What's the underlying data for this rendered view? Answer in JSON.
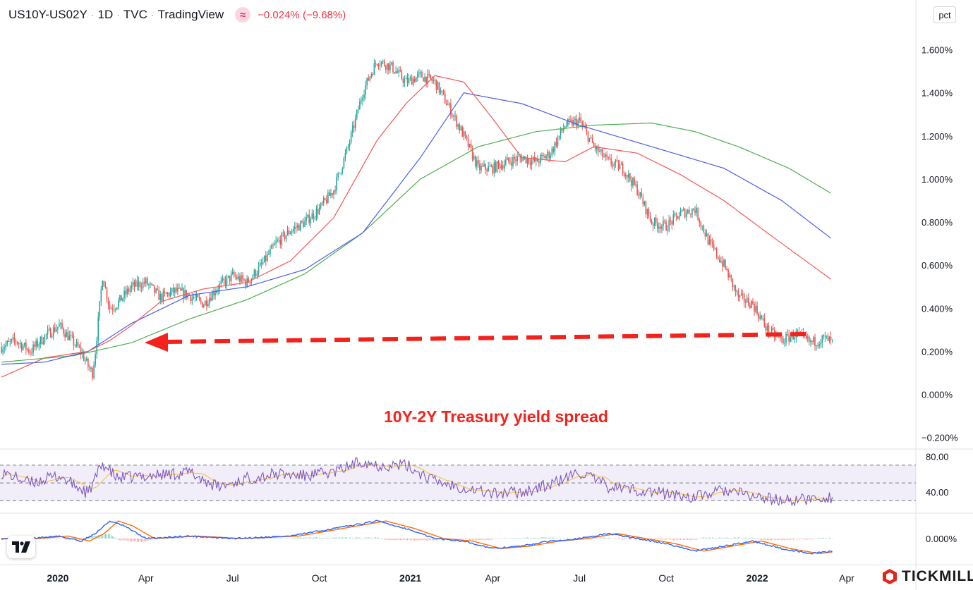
{
  "header": {
    "symbol": "US10Y-US02Y",
    "interval": "1D",
    "source": "TVC",
    "platform": "TradingView",
    "badge": "≈",
    "change": "−0.024% (−9.68%)"
  },
  "scale_button": "pct",
  "brand": "TICKMILL",
  "annotation": "10Y-2Y Treasury yield spread",
  "colors": {
    "up": "#26a69a",
    "down": "#ef5350",
    "ma_red": "#f25656",
    "ma_blue": "#4c5ee8",
    "ma_green": "#4caf50",
    "rsi": "#7e57c2",
    "rsi_ma": "#f5c242",
    "macd": "#2962ff",
    "signal": "#ff6d00",
    "arrow": "#f4221c"
  },
  "chart_data": {
    "type": "line",
    "x_ticks": [
      "2020",
      "Apr",
      "Jul",
      "Oct",
      "2021",
      "Apr",
      "Jul",
      "Oct",
      "2022",
      "Apr"
    ],
    "x_ticks_bold": [
      "2020",
      "2021",
      "2022"
    ],
    "price_axis": {
      "ticks": [
        "1.600%",
        "1.400%",
        "1.200%",
        "1.000%",
        "0.800%",
        "0.600%",
        "0.400%",
        "0.200%",
        "0.000%",
        "−0.200%"
      ],
      "ylim": [
        -0.25,
        1.7
      ]
    },
    "price": {
      "x": [
        0,
        10,
        20,
        30,
        40,
        50,
        55,
        60,
        63,
        65,
        70,
        75,
        80,
        90,
        100,
        110,
        120,
        130,
        140,
        150,
        160,
        170,
        180,
        190,
        200,
        210,
        220,
        230,
        240,
        250,
        255,
        260,
        270,
        280,
        290,
        300,
        310,
        320,
        330,
        340,
        350,
        360,
        370,
        380,
        390,
        400,
        410,
        420,
        430,
        440,
        450,
        460,
        470,
        480,
        490,
        500,
        510,
        520,
        530,
        540,
        550,
        560,
        570,
        575
      ],
      "y": [
        0.22,
        0.25,
        0.2,
        0.27,
        0.32,
        0.24,
        0.2,
        0.13,
        0.1,
        0.2,
        0.55,
        0.4,
        0.42,
        0.5,
        0.52,
        0.45,
        0.48,
        0.46,
        0.42,
        0.5,
        0.55,
        0.52,
        0.6,
        0.7,
        0.76,
        0.8,
        0.86,
        0.95,
        1.15,
        1.4,
        1.48,
        1.55,
        1.52,
        1.45,
        1.48,
        1.45,
        1.33,
        1.2,
        1.05,
        1.05,
        1.08,
        1.1,
        1.08,
        1.12,
        1.25,
        1.27,
        1.15,
        1.08,
        1.05,
        0.95,
        0.8,
        0.78,
        0.84,
        0.86,
        0.7,
        0.6,
        0.45,
        0.42,
        0.3,
        0.25,
        0.28,
        0.24,
        0.26,
        0.24
      ]
    },
    "ma_red": {
      "x": [
        0,
        30,
        60,
        75,
        90,
        110,
        140,
        170,
        200,
        230,
        260,
        280,
        300,
        320,
        340,
        360,
        390,
        410,
        440,
        470,
        500,
        530,
        575
      ],
      "y": [
        0.08,
        0.17,
        0.2,
        0.25,
        0.32,
        0.43,
        0.49,
        0.52,
        0.62,
        0.82,
        1.18,
        1.35,
        1.48,
        1.45,
        1.28,
        1.1,
        1.08,
        1.15,
        1.12,
        1.02,
        0.9,
        0.75,
        0.53
      ]
    },
    "ma_blue": {
      "x": [
        0,
        30,
        60,
        90,
        130,
        170,
        210,
        250,
        290,
        320,
        360,
        400,
        450,
        500,
        540,
        575
      ],
      "y": [
        0.14,
        0.15,
        0.2,
        0.33,
        0.46,
        0.5,
        0.58,
        0.75,
        1.1,
        1.4,
        1.35,
        1.25,
        1.15,
        1.05,
        0.9,
        0.72
      ]
    },
    "ma_green": {
      "x": [
        0,
        50,
        90,
        130,
        170,
        210,
        250,
        290,
        330,
        370,
        410,
        450,
        480,
        510,
        545,
        575
      ],
      "y": [
        0.15,
        0.18,
        0.24,
        0.35,
        0.44,
        0.56,
        0.75,
        1.0,
        1.15,
        1.22,
        1.25,
        1.26,
        1.22,
        1.15,
        1.05,
        0.93
      ]
    },
    "rsi": {
      "levels": [
        70,
        50,
        30
      ],
      "axis_ticks": [
        "80.00",
        "40.00"
      ],
      "ylim": [
        20,
        85
      ],
      "x": [
        0,
        20,
        40,
        60,
        70,
        80,
        100,
        130,
        150,
        170,
        190,
        210,
        230,
        250,
        260,
        280,
        300,
        320,
        340,
        360,
        380,
        400,
        420,
        440,
        460,
        480,
        500,
        520,
        540,
        560,
        575
      ],
      "y": [
        62,
        50,
        58,
        38,
        72,
        55,
        58,
        62,
        45,
        55,
        60,
        58,
        62,
        75,
        70,
        70,
        52,
        45,
        38,
        40,
        48,
        62,
        46,
        42,
        38,
        34,
        42,
        35,
        30,
        32,
        34
      ]
    },
    "macd": {
      "axis_ticks": [
        "0.000%"
      ],
      "ylim": [
        -0.09,
        0.09
      ],
      "x": [
        0,
        20,
        40,
        55,
        65,
        75,
        85,
        100,
        130,
        160,
        200,
        240,
        260,
        280,
        300,
        320,
        340,
        360,
        380,
        400,
        420,
        440,
        460,
        480,
        500,
        520,
        540,
        560,
        575
      ],
      "y": [
        0.0,
        0.0,
        0.01,
        -0.01,
        0.02,
        0.07,
        0.05,
        0.0,
        0.01,
        0.0,
        0.01,
        0.05,
        0.07,
        0.04,
        0.0,
        -0.01,
        -0.04,
        -0.03,
        -0.01,
        0.0,
        0.02,
        0.0,
        -0.02,
        -0.05,
        -0.03,
        -0.01,
        -0.04,
        -0.06,
        -0.05
      ]
    }
  }
}
